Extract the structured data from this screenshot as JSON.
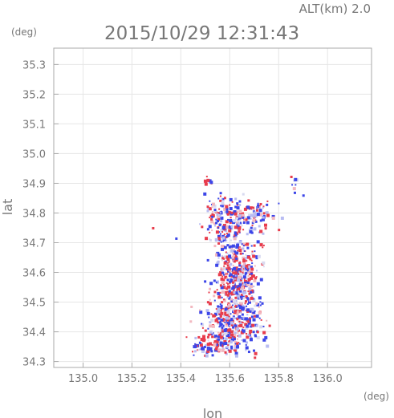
{
  "chart_data": {
    "type": "scatter",
    "title": "2015/10/29 12:31:43",
    "subtitle": "ALT(km) 2.0",
    "xlabel": "lon",
    "ylabel": "lat",
    "x_unit": "(deg)",
    "y_unit": "(deg)",
    "xlim": [
      134.88,
      136.18
    ],
    "ylim": [
      34.28,
      35.355
    ],
    "x_ticks": [
      "135.0",
      "135.2",
      "135.4",
      "135.6",
      "135.8",
      "136.0"
    ],
    "y_ticks": [
      "34.3",
      "34.4",
      "34.5",
      "34.6",
      "34.7",
      "34.8",
      "34.9",
      "35.0",
      "35.1",
      "35.2",
      "35.3"
    ],
    "grid": true,
    "colors": {
      "positive": "#e83c4c",
      "negative": "#3c46e8",
      "neutral": "#d8daf0",
      "axis": "#aaaaaa",
      "text": "#777777"
    },
    "clusters": [
      {
        "lon": 135.625,
        "lat": 34.575,
        "sx": 0.045,
        "sy": 0.075,
        "n": 520
      },
      {
        "lon": 135.6,
        "lat": 34.42,
        "sx": 0.065,
        "sy": 0.04,
        "n": 280
      },
      {
        "lon": 135.54,
        "lat": 34.355,
        "sx": 0.05,
        "sy": 0.018,
        "n": 80
      },
      {
        "lon": 135.55,
        "lat": 34.78,
        "sx": 0.03,
        "sy": 0.045,
        "n": 90
      },
      {
        "lon": 135.65,
        "lat": 34.785,
        "sx": 0.06,
        "sy": 0.035,
        "n": 160
      },
      {
        "lon": 135.51,
        "lat": 34.92,
        "sx": 0.01,
        "sy": 0.01,
        "n": 8
      },
      {
        "lon": 135.86,
        "lat": 34.9,
        "sx": 0.01,
        "sy": 0.02,
        "n": 8
      },
      {
        "lon": 135.72,
        "lat": 34.81,
        "sx": 0.02,
        "sy": 0.015,
        "n": 18
      }
    ],
    "isolated_points": [
      {
        "lon": 135.285,
        "lat": 34.75,
        "v": 1
      },
      {
        "lon": 135.38,
        "lat": 34.715,
        "v": -1
      },
      {
        "lon": 135.9,
        "lat": 34.86,
        "v": -1
      }
    ]
  }
}
